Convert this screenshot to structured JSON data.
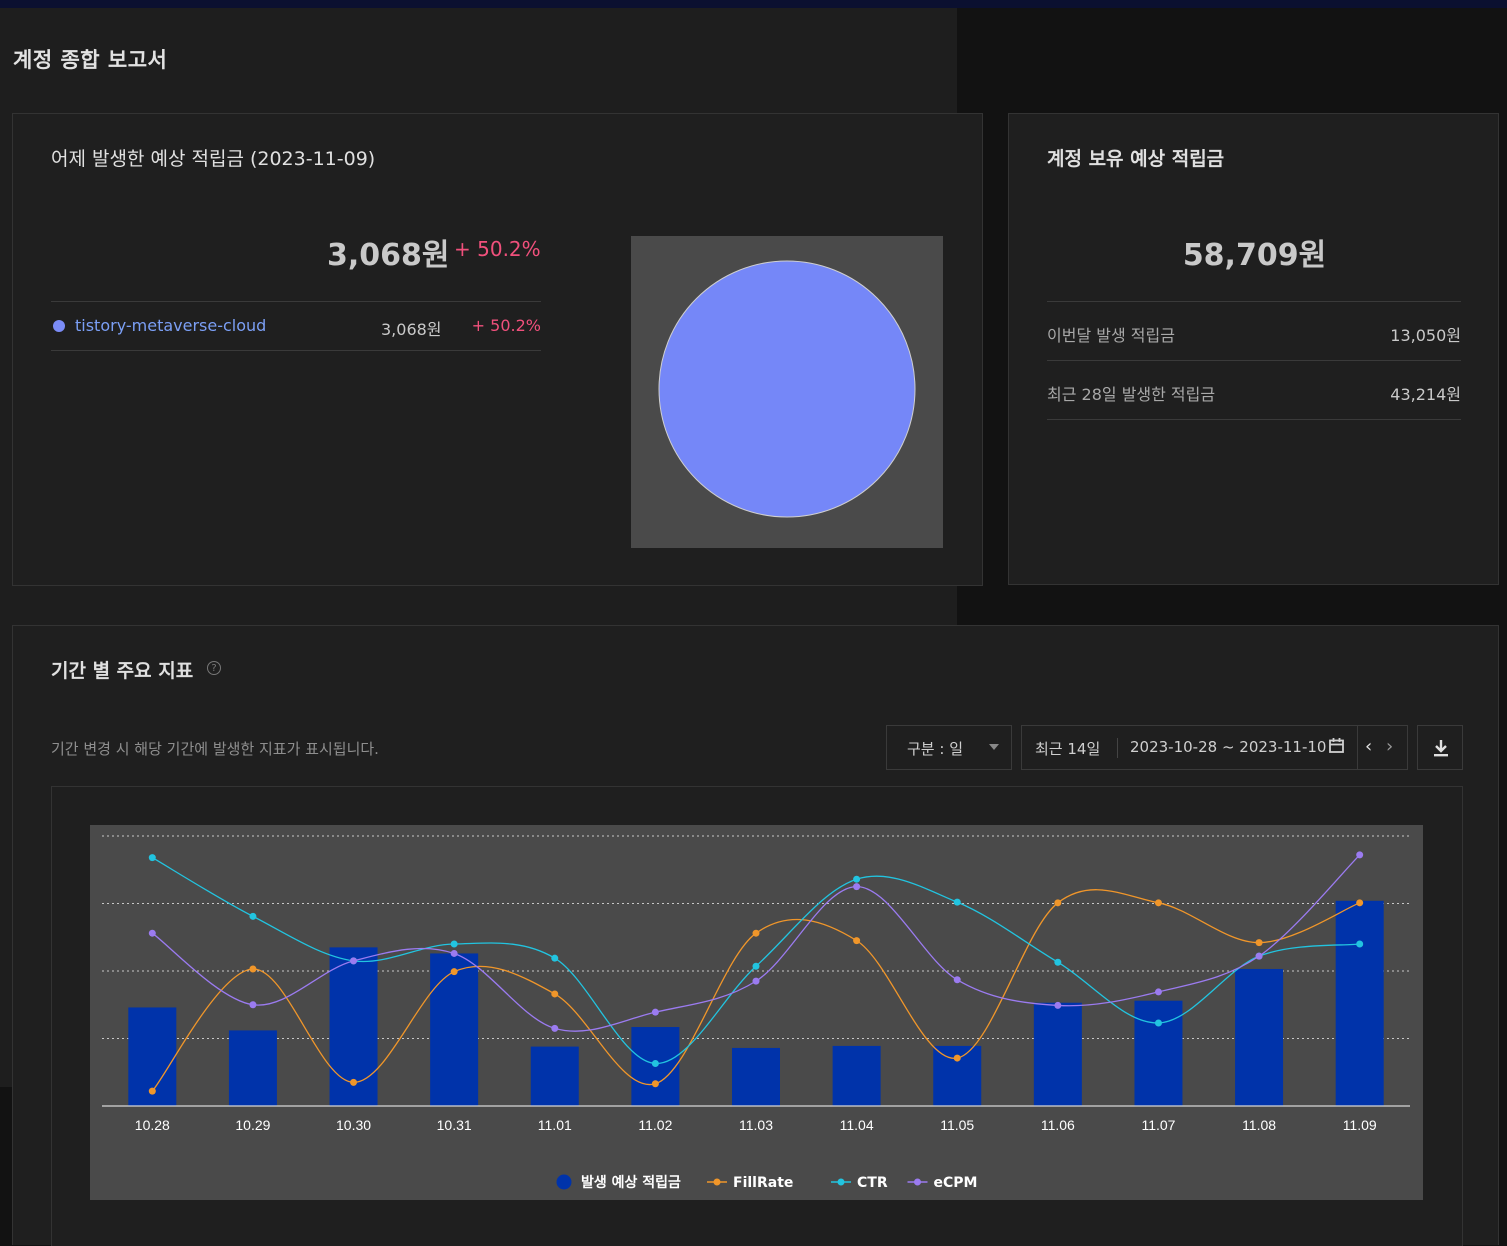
{
  "page_title": "계정 종합 보고서",
  "yesterday_card": {
    "title": "어제 발생한 예상 적립금 (2023-11-09)",
    "amount": "3,068원",
    "change": "+ 50.2%",
    "items": [
      {
        "name": "tistory-metaverse-cloud",
        "amount": "3,068원",
        "change": "+ 50.2%",
        "color": "#7b8cf7"
      }
    ]
  },
  "balance_card": {
    "title": "계정 보유 예상 적립금",
    "amount": "58,709원",
    "rows": [
      {
        "label": "이번달 발생 적립금",
        "value": "13,050원"
      },
      {
        "label": "최근 28일 발생한 적립금",
        "value": "43,214원"
      }
    ]
  },
  "metrics_section": {
    "title": "기간 별 주요 지표",
    "help_icon": "?",
    "description": "기간 변경 시 해당 기간에 발생한 지표가 표시됩니다.",
    "unit_select": "구분 : 일",
    "range_label": "최근 14일",
    "range_dates": "2023-10-28 ~ 2023-11-10",
    "calendar_icon": "calendar-icon",
    "prev_icon": "chevron-left-icon",
    "next_icon": "chevron-right-icon",
    "download_icon": "download-icon"
  },
  "chart_data": {
    "type": "bar",
    "categories": [
      "10.28",
      "10.29",
      "10.30",
      "10.31",
      "11.01",
      "11.02",
      "11.03",
      "11.04",
      "11.05",
      "11.06",
      "11.07",
      "11.08",
      "11.09"
    ],
    "series": [
      {
        "name": "발생 예상 적립금",
        "type": "bar",
        "color": "#0033aa",
        "values": [
          1.46,
          1.12,
          2.35,
          2.26,
          0.88,
          1.17,
          0.86,
          0.89,
          0.89,
          1.53,
          1.56,
          2.03,
          3.04
        ]
      },
      {
        "name": "FillRate",
        "type": "line",
        "color": "#f0962a",
        "values": [
          0.22,
          2.03,
          0.35,
          1.99,
          1.66,
          0.33,
          2.56,
          2.45,
          0.71,
          3.01,
          3.01,
          2.42,
          3.01
        ]
      },
      {
        "name": "CTR",
        "type": "line",
        "color": "#22c4e0",
        "values": [
          3.68,
          2.81,
          2.15,
          2.4,
          2.19,
          0.63,
          2.07,
          3.36,
          3.02,
          2.13,
          1.23,
          2.22,
          2.4
        ]
      },
      {
        "name": "eCPM",
        "type": "line",
        "color": "#9b7bf0",
        "values": [
          2.56,
          1.5,
          2.15,
          2.26,
          1.15,
          1.39,
          1.85,
          3.25,
          1.87,
          1.49,
          1.69,
          2.22,
          3.72
        ]
      }
    ],
    "gridlines": 4,
    "grid": true,
    "legend_position": "bottom"
  }
}
